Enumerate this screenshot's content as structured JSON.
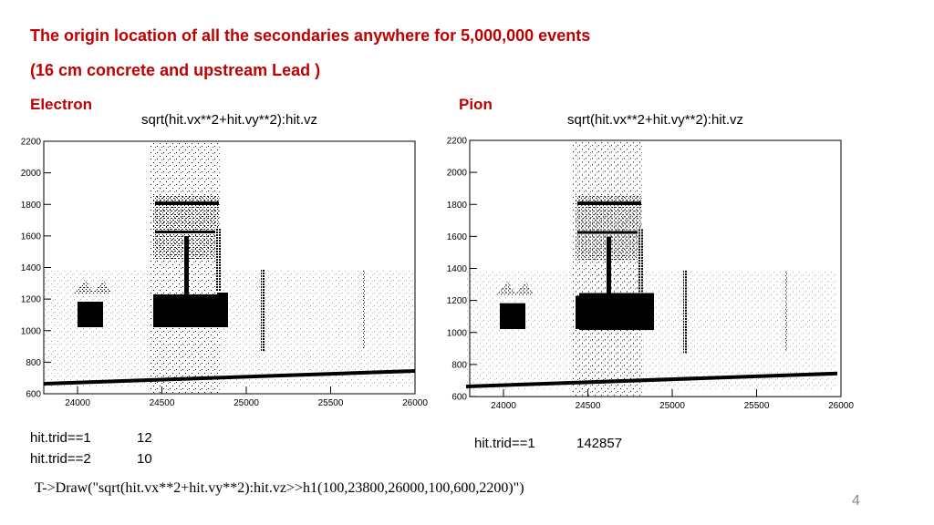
{
  "title": "The origin location of all the secondaries anywhere for 5,000,000 events",
  "subtitle": "(16 cm concrete and upstream Lead )",
  "panels": [
    {
      "label": "Electron",
      "plot": {
        "title": "sqrt(hit.vx**2+hit.vy**2):hit.vz",
        "xlim": [
          23800,
          26000
        ],
        "ylim": [
          600,
          2200
        ],
        "xticks": [
          24000,
          24500,
          25000,
          25500,
          26000
        ],
        "yticks": [
          600,
          800,
          1000,
          1200,
          1400,
          1600,
          1800,
          2000,
          2200
        ]
      },
      "counts": [
        {
          "cut": "hit.trid==1",
          "value": 12
        },
        {
          "cut": "hit.trid==2",
          "value": 10
        }
      ]
    },
    {
      "label": "Pion",
      "plot": {
        "title": "sqrt(hit.vx**2+hit.vy**2):hit.vz",
        "xlim": [
          23800,
          26000
        ],
        "ylim": [
          600,
          2200
        ],
        "xticks": [
          24000,
          24500,
          25000,
          25500,
          26000
        ],
        "yticks": [
          600,
          800,
          1000,
          1200,
          1400,
          1600,
          1800,
          2000,
          2200
        ]
      },
      "counts": [
        {
          "cut": "hit.trid==1",
          "value": 142857
        }
      ]
    }
  ],
  "command": "T->Draw(\"sqrt(hit.vx**2+hit.vy**2):hit.vz>>h1(100,23800,26000,100,600,2200)\")",
  "page_number": 4
}
